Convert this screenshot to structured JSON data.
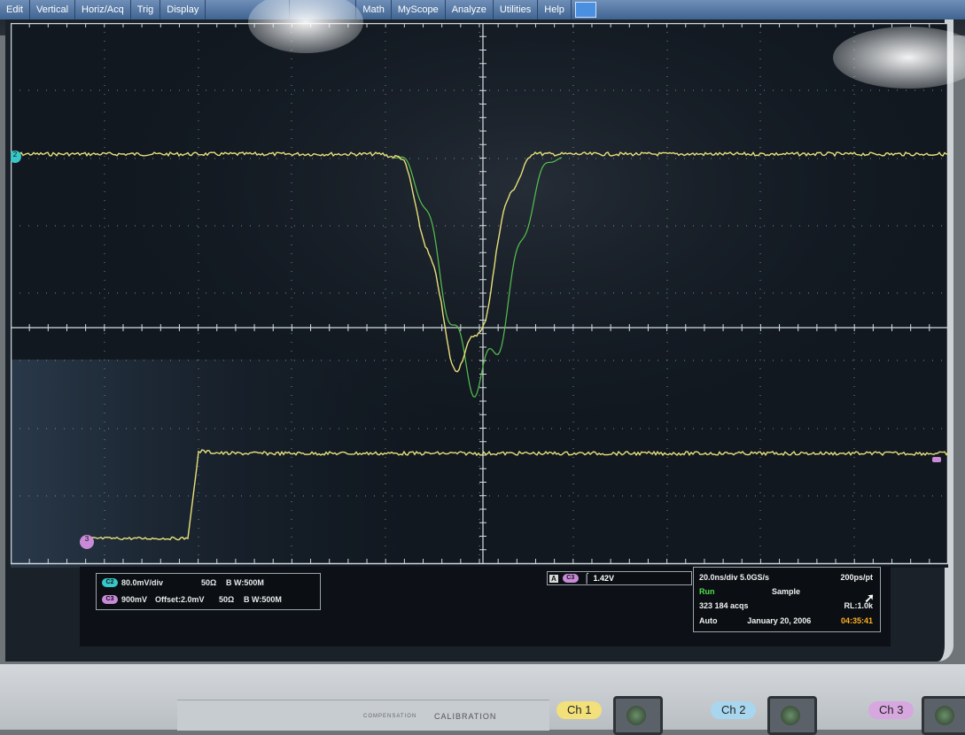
{
  "menu": {
    "items": [
      "Edit",
      "Vertical",
      "Horiz/Acq",
      "Trig",
      "Display",
      "Math",
      "MyScope",
      "Analyze",
      "Utilities",
      "Help"
    ]
  },
  "channels": [
    {
      "badge": "C2",
      "scale": "80.0mV/div",
      "offset": "",
      "impedance": "50Ω",
      "bandwidth": "B W:500M",
      "color": "#39c6c6"
    },
    {
      "badge": "C3",
      "scale": "900mV",
      "offset": "Offset:2.0mV",
      "impedance": "50Ω",
      "bandwidth": "B W:500M",
      "color": "#c98ad8"
    }
  ],
  "trigger": {
    "source_tag": "A",
    "channel_badge": "C3",
    "slope_icon": "rising-edge-icon",
    "level": "1.42V"
  },
  "horizontal": {
    "scale": "20.0ns/div 5.0GS/s",
    "resolution": "200ps/pt",
    "run_state": "Run",
    "mode": "Sample",
    "acquisitions": "323 184 acqs",
    "record_length": "RL:1.0k",
    "trigger_mode": "Auto",
    "date": "January 20, 2006",
    "time": "04:35:41"
  },
  "front_panel": {
    "calibration": "CALIBRATION",
    "compensation": "COMPENSATION",
    "ch_buttons": [
      "Ch 1",
      "Ch 2",
      "Ch 3"
    ]
  },
  "waveform_colors": {
    "trace": "#e8e07a",
    "green_trace": "#58c050",
    "grid": "#9aa1a8"
  }
}
